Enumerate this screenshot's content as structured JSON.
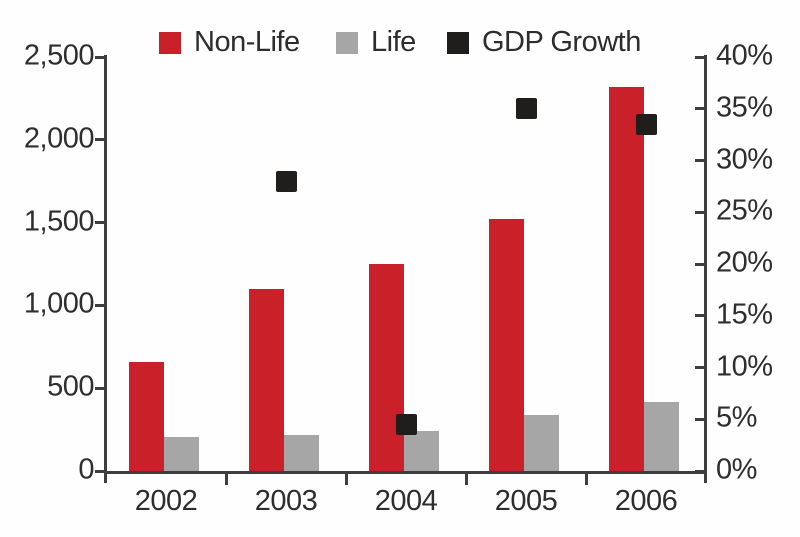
{
  "chart_data": {
    "type": "bar",
    "subtype": "grouped-bars-with-scatter-overlay",
    "title": "",
    "categories": [
      "2002",
      "2003",
      "2004",
      "2005",
      "2006"
    ],
    "series": [
      {
        "name": "Non-Life",
        "type": "bar",
        "axis": "left",
        "color": "#c9202a",
        "values": [
          660,
          1100,
          1250,
          1520,
          2320
        ]
      },
      {
        "name": "Life",
        "type": "bar",
        "axis": "left",
        "color": "#a6a6a6",
        "values": [
          205,
          215,
          240,
          340,
          415
        ]
      },
      {
        "name": "GDP Growth",
        "type": "scatter",
        "marker": "square",
        "axis": "right",
        "color": "#201d1d",
        "values": [
          null,
          28,
          4.5,
          35,
          33.5
        ]
      }
    ],
    "left_axis": {
      "min": 0,
      "max": 2500,
      "step": 500,
      "tick_labels": [
        "0",
        "500",
        "1,000",
        "1,500",
        "2,000",
        "2,500"
      ]
    },
    "right_axis": {
      "min": 0,
      "max": 40,
      "step": 5,
      "unit": "%",
      "tick_labels": [
        "0%",
        "5%",
        "10%",
        "15%",
        "20%",
        "25%",
        "30%",
        "35%",
        "40%"
      ]
    },
    "legend": [
      {
        "label": "Non-Life",
        "color": "#c9202a"
      },
      {
        "label": "Life",
        "color": "#a6a6a6"
      },
      {
        "label": "GDP Growth",
        "color": "#201d1d"
      }
    ],
    "grid": false,
    "legend_position": "top"
  },
  "colors": {
    "axis": "#3e3e3e",
    "text": "#2e2e2e",
    "background": "#fffefe"
  }
}
